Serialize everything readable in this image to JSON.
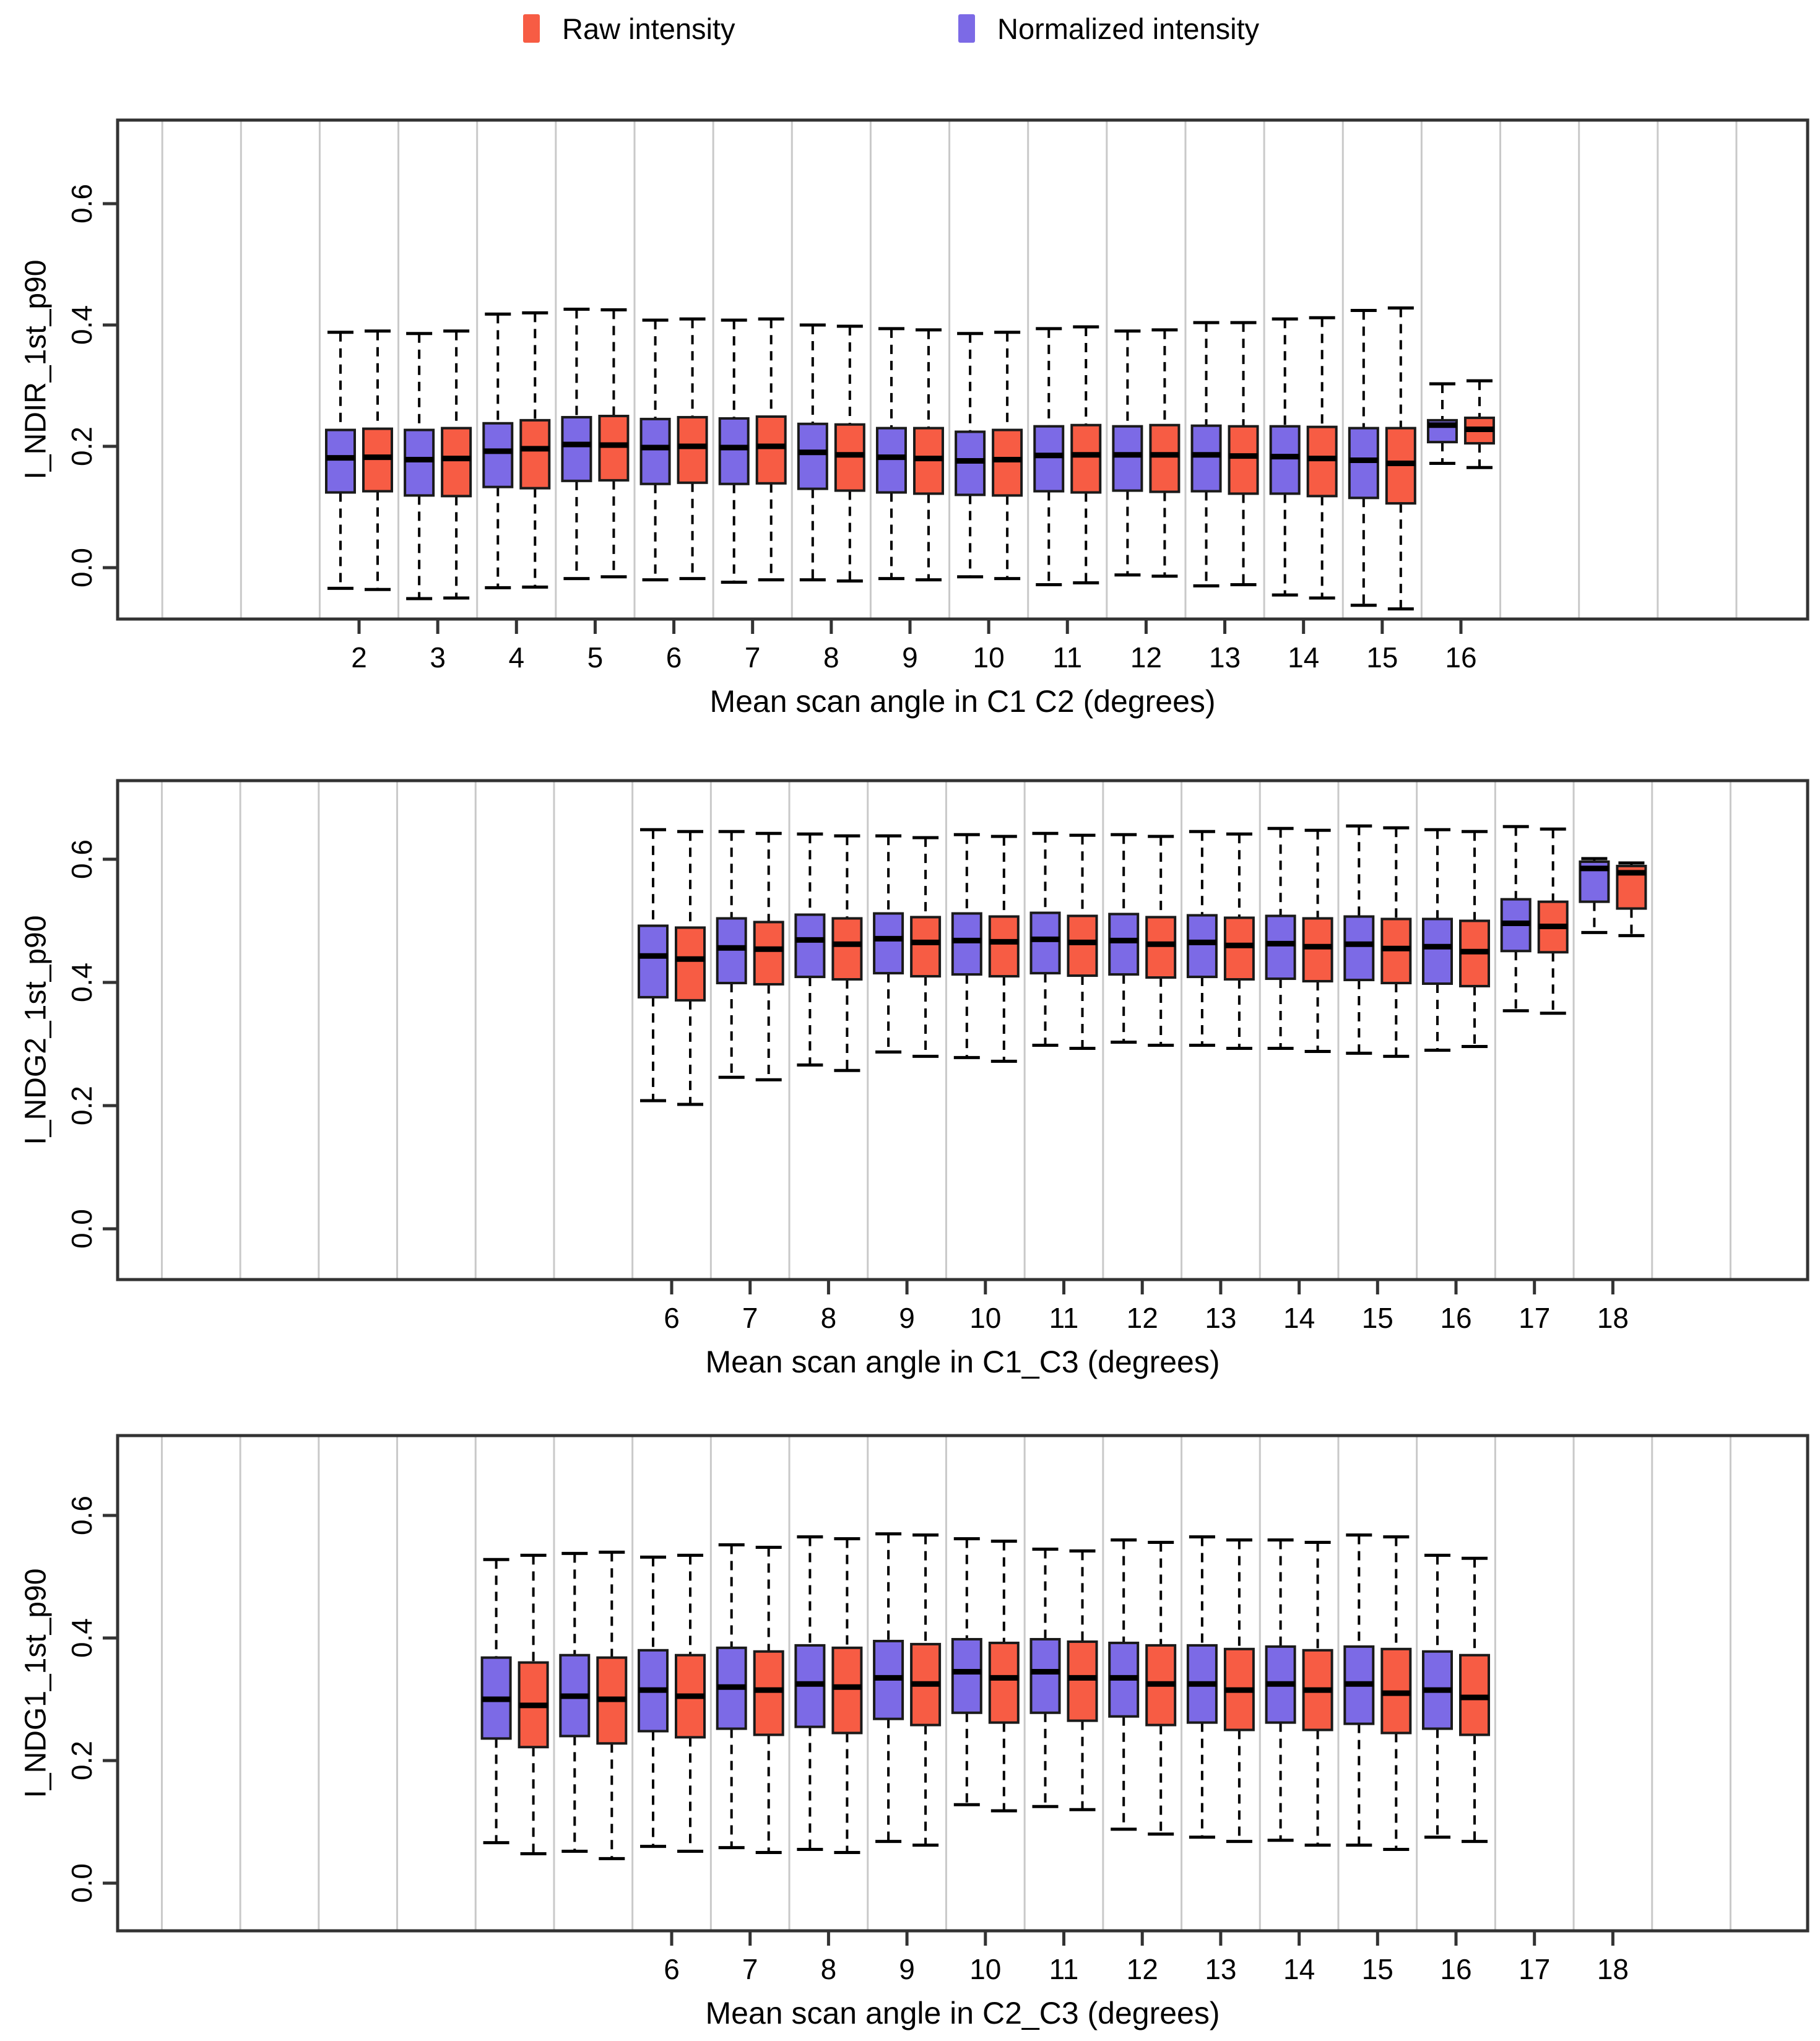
{
  "figure": {
    "background": "#ffffff"
  },
  "legend": {
    "position": "top-center",
    "items": [
      {
        "label": "Raw intensity",
        "key": "raw",
        "color": "#F75C44"
      },
      {
        "label": "Normalized intensity",
        "key": "normalized",
        "color": "#7C6AE6"
      }
    ]
  },
  "colors": {
    "raw": "#F75C44",
    "normalized": "#7C6AE6",
    "grid": "#C9C9C9",
    "panel_border": "#333333",
    "box_border": "#1A1A1A",
    "median": "#000000",
    "text": "#000000"
  },
  "chart_data": {
    "type": "boxplot",
    "orientation": "vertical",
    "grid": "vertical-category-separators",
    "legend_position": "top-center",
    "group_order": [
      "normalized",
      "raw"
    ],
    "box_columns": [
      "x",
      "min",
      "q1",
      "median",
      "q3",
      "max"
    ],
    "panels": [
      {
        "ylabel": "I_NDIR_1st_p90",
        "xlabel": "Mean scan angle in C1  C2 (degrees)",
        "y_ticks": [
          "0.0",
          "0.2",
          "0.4",
          "0.6"
        ],
        "y_tick_values": [
          0.0,
          0.2,
          0.4,
          0.6
        ],
        "ylim": [
          -0.085,
          0.735
        ],
        "x_ticks": [
          2,
          3,
          4,
          5,
          6,
          7,
          8,
          9,
          10,
          11,
          12,
          13,
          14,
          15,
          16
        ],
        "grid_from": -0.5,
        "grid_to": 19.5,
        "series": [
          {
            "name": "Normalized intensity",
            "key": "normalized",
            "boxes": [
              [
                2,
                -0.034,
                0.124,
                0.181,
                0.227,
                0.388
              ],
              [
                3,
                -0.051,
                0.119,
                0.178,
                0.227,
                0.386
              ],
              [
                4,
                -0.033,
                0.133,
                0.192,
                0.238,
                0.418
              ],
              [
                5,
                -0.018,
                0.143,
                0.203,
                0.248,
                0.426
              ],
              [
                6,
                -0.02,
                0.138,
                0.198,
                0.245,
                0.408
              ],
              [
                7,
                -0.024,
                0.138,
                0.198,
                0.246,
                0.408
              ],
              [
                8,
                -0.02,
                0.13,
                0.19,
                0.237,
                0.4
              ],
              [
                9,
                -0.018,
                0.124,
                0.182,
                0.23,
                0.394
              ],
              [
                10,
                -0.015,
                0.12,
                0.176,
                0.224,
                0.386
              ],
              [
                11,
                -0.028,
                0.126,
                0.185,
                0.233,
                0.394
              ],
              [
                12,
                -0.012,
                0.127,
                0.186,
                0.233,
                0.39
              ],
              [
                13,
                -0.03,
                0.126,
                0.186,
                0.234,
                0.404
              ],
              [
                14,
                -0.045,
                0.122,
                0.183,
                0.233,
                0.41
              ],
              [
                15,
                -0.062,
                0.115,
                0.177,
                0.23,
                0.424
              ],
              [
                16,
                0.172,
                0.207,
                0.235,
                0.243,
                0.303
              ]
            ]
          },
          {
            "name": "Raw intensity",
            "key": "raw",
            "boxes": [
              [
                2,
                -0.036,
                0.126,
                0.182,
                0.229,
                0.39
              ],
              [
                3,
                -0.05,
                0.118,
                0.18,
                0.23,
                0.39
              ],
              [
                4,
                -0.032,
                0.131,
                0.196,
                0.243,
                0.42
              ],
              [
                5,
                -0.015,
                0.144,
                0.202,
                0.25,
                0.425
              ],
              [
                6,
                -0.018,
                0.14,
                0.2,
                0.248,
                0.41
              ],
              [
                7,
                -0.02,
                0.139,
                0.2,
                0.249,
                0.41
              ],
              [
                8,
                -0.022,
                0.127,
                0.186,
                0.236,
                0.398
              ],
              [
                9,
                -0.02,
                0.122,
                0.18,
                0.23,
                0.392
              ],
              [
                10,
                -0.018,
                0.119,
                0.178,
                0.227,
                0.388
              ],
              [
                11,
                -0.025,
                0.124,
                0.186,
                0.235,
                0.397
              ],
              [
                12,
                -0.014,
                0.125,
                0.186,
                0.235,
                0.392
              ],
              [
                13,
                -0.028,
                0.122,
                0.184,
                0.233,
                0.404
              ],
              [
                14,
                -0.05,
                0.118,
                0.18,
                0.232,
                0.412
              ],
              [
                15,
                -0.068,
                0.106,
                0.172,
                0.23,
                0.428
              ],
              [
                16,
                0.165,
                0.205,
                0.228,
                0.247,
                0.308
              ]
            ]
          }
        ]
      },
      {
        "ylabel": "I_NDG2_1st_p90",
        "xlabel": "Mean scan angle in C1_C3 (degrees)",
        "y_ticks": [
          "0.0",
          "0.2",
          "0.4",
          "0.6"
        ],
        "y_tick_values": [
          0.0,
          0.2,
          0.4,
          0.6
        ],
        "ylim": [
          -0.082,
          0.728
        ],
        "x_ticks": [
          6,
          7,
          8,
          9,
          10,
          11,
          12,
          13,
          14,
          15,
          16,
          17,
          18
        ],
        "grid_from": -0.5,
        "grid_to": 19.5,
        "series": [
          {
            "name": "Normalized intensity",
            "key": "normalized",
            "boxes": [
              [
                6,
                0.208,
                0.376,
                0.443,
                0.492,
                0.648
              ],
              [
                7,
                0.246,
                0.399,
                0.456,
                0.504,
                0.645
              ],
              [
                8,
                0.266,
                0.409,
                0.469,
                0.51,
                0.641
              ],
              [
                9,
                0.287,
                0.415,
                0.471,
                0.512,
                0.638
              ],
              [
                10,
                0.278,
                0.413,
                0.468,
                0.512,
                0.64
              ],
              [
                11,
                0.298,
                0.415,
                0.47,
                0.513,
                0.642
              ],
              [
                12,
                0.303,
                0.413,
                0.468,
                0.511,
                0.64
              ],
              [
                13,
                0.298,
                0.409,
                0.465,
                0.509,
                0.645
              ],
              [
                14,
                0.293,
                0.406,
                0.463,
                0.508,
                0.65
              ],
              [
                15,
                0.285,
                0.404,
                0.462,
                0.507,
                0.654
              ],
              [
                16,
                0.29,
                0.398,
                0.458,
                0.503,
                0.648
              ],
              [
                17,
                0.354,
                0.451,
                0.496,
                0.535,
                0.653
              ],
              [
                18,
                0.481,
                0.531,
                0.585,
                0.596,
                0.601
              ]
            ]
          },
          {
            "name": "Raw intensity",
            "key": "raw",
            "boxes": [
              [
                6,
                0.202,
                0.371,
                0.438,
                0.489,
                0.645
              ],
              [
                7,
                0.242,
                0.397,
                0.454,
                0.498,
                0.642
              ],
              [
                8,
                0.257,
                0.405,
                0.462,
                0.504,
                0.638
              ],
              [
                9,
                0.28,
                0.41,
                0.465,
                0.506,
                0.635
              ],
              [
                10,
                0.272,
                0.41,
                0.466,
                0.507,
                0.637
              ],
              [
                11,
                0.293,
                0.411,
                0.465,
                0.508,
                0.639
              ],
              [
                12,
                0.298,
                0.408,
                0.462,
                0.506,
                0.637
              ],
              [
                13,
                0.293,
                0.405,
                0.46,
                0.505,
                0.641
              ],
              [
                14,
                0.288,
                0.402,
                0.458,
                0.504,
                0.647
              ],
              [
                15,
                0.28,
                0.399,
                0.455,
                0.503,
                0.651
              ],
              [
                16,
                0.296,
                0.394,
                0.45,
                0.5,
                0.645
              ],
              [
                17,
                0.35,
                0.449,
                0.491,
                0.531,
                0.649
              ],
              [
                18,
                0.476,
                0.52,
                0.578,
                0.589,
                0.594
              ]
            ]
          }
        ]
      },
      {
        "ylabel": "I_NDG1_1st_p90",
        "xlabel": "Mean scan angle in C2_C3 (degrees)",
        "y_ticks": [
          "0.0",
          "0.2",
          "0.4",
          "0.6"
        ],
        "y_tick_values": [
          0.0,
          0.2,
          0.4,
          0.6
        ],
        "ylim": [
          -0.078,
          0.73
        ],
        "x_ticks": [
          6,
          7,
          8,
          9,
          10,
          11,
          12,
          13,
          14,
          15,
          16,
          17,
          18
        ],
        "grid_from": -0.5,
        "grid_to": 19.5,
        "series": [
          {
            "name": "Normalized intensity",
            "key": "normalized",
            "boxes": [
              [
                4,
                0.066,
                0.236,
                0.3,
                0.368,
                0.528
              ],
              [
                5,
                0.052,
                0.24,
                0.305,
                0.372,
                0.538
              ],
              [
                6,
                0.06,
                0.248,
                0.315,
                0.38,
                0.532
              ],
              [
                7,
                0.058,
                0.252,
                0.32,
                0.384,
                0.552
              ],
              [
                8,
                0.055,
                0.255,
                0.325,
                0.388,
                0.565
              ],
              [
                9,
                0.068,
                0.268,
                0.335,
                0.395,
                0.57
              ],
              [
                10,
                0.128,
                0.278,
                0.345,
                0.398,
                0.562
              ],
              [
                11,
                0.125,
                0.278,
                0.345,
                0.398,
                0.545
              ],
              [
                12,
                0.088,
                0.272,
                0.335,
                0.392,
                0.56
              ],
              [
                13,
                0.075,
                0.262,
                0.325,
                0.388,
                0.565
              ],
              [
                14,
                0.07,
                0.262,
                0.325,
                0.386,
                0.56
              ],
              [
                15,
                0.062,
                0.26,
                0.325,
                0.386,
                0.568
              ],
              [
                16,
                0.075,
                0.252,
                0.315,
                0.378,
                0.535
              ]
            ]
          },
          {
            "name": "Raw intensity",
            "key": "raw",
            "boxes": [
              [
                4,
                0.048,
                0.222,
                0.29,
                0.36,
                0.535
              ],
              [
                5,
                0.04,
                0.228,
                0.3,
                0.368,
                0.54
              ],
              [
                6,
                0.052,
                0.238,
                0.305,
                0.372,
                0.535
              ],
              [
                7,
                0.05,
                0.242,
                0.315,
                0.378,
                0.548
              ],
              [
                8,
                0.05,
                0.245,
                0.32,
                0.384,
                0.562
              ],
              [
                9,
                0.062,
                0.258,
                0.325,
                0.39,
                0.568
              ],
              [
                10,
                0.118,
                0.262,
                0.335,
                0.392,
                0.558
              ],
              [
                11,
                0.12,
                0.265,
                0.335,
                0.394,
                0.542
              ],
              [
                12,
                0.08,
                0.258,
                0.325,
                0.388,
                0.556
              ],
              [
                13,
                0.068,
                0.25,
                0.315,
                0.382,
                0.56
              ],
              [
                14,
                0.062,
                0.25,
                0.315,
                0.38,
                0.556
              ],
              [
                15,
                0.055,
                0.245,
                0.31,
                0.382,
                0.565
              ],
              [
                16,
                0.068,
                0.242,
                0.303,
                0.372,
                0.53
              ]
            ]
          }
        ]
      }
    ]
  }
}
